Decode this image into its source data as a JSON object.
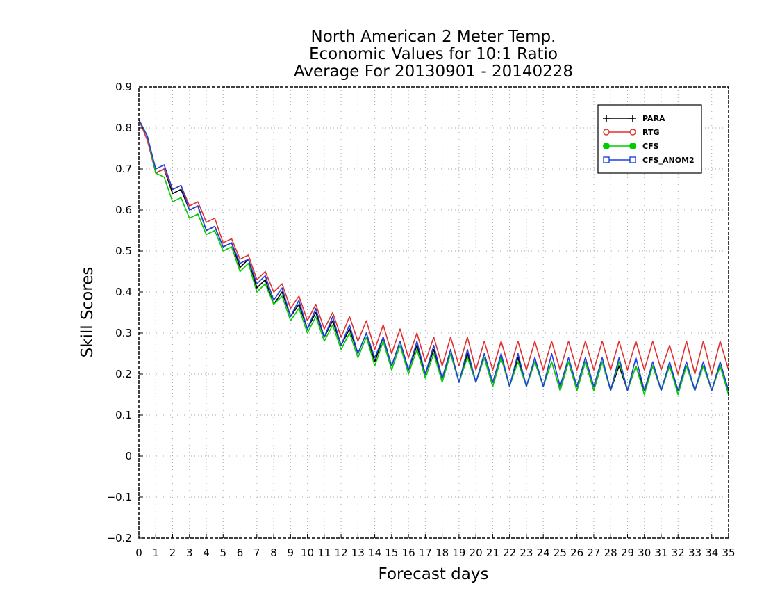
{
  "chart_data": {
    "type": "line",
    "title_lines": [
      "North American 2 Meter Temp.",
      "Economic Values for 10:1 Ratio",
      "Average For 20130901 - 20140228"
    ],
    "xlabel": "Forecast days",
    "ylabel": "Skill Scores",
    "xlim": [
      0,
      35
    ],
    "ylim": [
      -0.2,
      0.9
    ],
    "x_ticks": [
      0,
      1,
      2,
      3,
      4,
      5,
      6,
      7,
      8,
      9,
      10,
      11,
      12,
      13,
      14,
      15,
      16,
      17,
      18,
      19,
      20,
      21,
      22,
      23,
      24,
      25,
      26,
      27,
      28,
      29,
      30,
      31,
      32,
      33,
      34,
      35
    ],
    "y_ticks": [
      0.9,
      0.8,
      0.7,
      0.6,
      0.5,
      0.4,
      0.3,
      0.2,
      0.1,
      0,
      -0.1,
      -0.2
    ],
    "y_tick_labels": [
      "0.9",
      "0.8",
      "0.7",
      "0.6",
      "0.5",
      "0.4",
      "0.3",
      "0.2",
      "0.1",
      "0",
      "−0.1",
      "−0.2"
    ],
    "grid": true,
    "legend_position": "top-right",
    "series": [
      {
        "name": "PARA",
        "color": "#000000",
        "marker": "plus",
        "values": [
          0.82,
          0.78,
          0.69,
          0.7,
          0.64,
          0.65,
          0.6,
          0.61,
          0.55,
          0.56,
          0.51,
          0.52,
          0.46,
          0.48,
          0.41,
          0.43,
          0.37,
          0.4,
          0.34,
          0.37,
          0.31,
          0.35,
          0.29,
          0.33,
          0.27,
          0.31,
          0.25,
          0.3,
          0.23,
          0.29,
          0.22,
          0.28,
          0.21,
          0.27,
          0.2,
          0.26,
          0.19,
          0.25,
          0.18,
          0.25,
          0.18,
          0.24,
          0.17,
          0.24,
          0.17,
          0.24,
          0.17,
          0.23,
          0.17,
          0.23,
          0.16,
          0.23,
          0.16,
          0.23,
          0.16,
          0.23,
          0.16,
          0.22,
          0.16,
          0.22,
          0.16,
          0.22,
          0.16,
          0.22,
          0.16,
          0.22,
          0.16,
          0.22,
          0.16,
          0.22,
          0.15
        ]
      },
      {
        "name": "RTG",
        "color": "#e03030",
        "marker": "circle",
        "values": [
          0.82,
          0.77,
          0.69,
          0.7,
          0.65,
          0.66,
          0.61,
          0.62,
          0.57,
          0.58,
          0.52,
          0.53,
          0.48,
          0.49,
          0.43,
          0.45,
          0.4,
          0.42,
          0.36,
          0.39,
          0.33,
          0.37,
          0.31,
          0.35,
          0.29,
          0.34,
          0.28,
          0.33,
          0.26,
          0.32,
          0.25,
          0.31,
          0.24,
          0.3,
          0.23,
          0.29,
          0.22,
          0.29,
          0.22,
          0.29,
          0.21,
          0.28,
          0.21,
          0.28,
          0.21,
          0.28,
          0.21,
          0.28,
          0.21,
          0.28,
          0.21,
          0.28,
          0.21,
          0.28,
          0.21,
          0.28,
          0.21,
          0.28,
          0.21,
          0.28,
          0.21,
          0.28,
          0.21,
          0.27,
          0.2,
          0.28,
          0.2,
          0.28,
          0.2,
          0.28,
          0.21
        ]
      },
      {
        "name": "CFS",
        "color": "#00cc00",
        "marker": "filled-circle",
        "values": [
          0.82,
          0.78,
          0.69,
          0.68,
          0.62,
          0.63,
          0.58,
          0.59,
          0.54,
          0.55,
          0.5,
          0.51,
          0.45,
          0.47,
          0.4,
          0.42,
          0.37,
          0.39,
          0.33,
          0.36,
          0.3,
          0.34,
          0.28,
          0.32,
          0.26,
          0.3,
          0.24,
          0.29,
          0.22,
          0.28,
          0.21,
          0.27,
          0.2,
          0.26,
          0.19,
          0.25,
          0.18,
          0.25,
          0.18,
          0.24,
          0.18,
          0.24,
          0.17,
          0.24,
          0.17,
          0.23,
          0.17,
          0.23,
          0.17,
          0.23,
          0.16,
          0.23,
          0.16,
          0.23,
          0.16,
          0.23,
          0.16,
          0.23,
          0.16,
          0.22,
          0.15,
          0.22,
          0.16,
          0.22,
          0.15,
          0.22,
          0.16,
          0.22,
          0.16,
          0.22,
          0.15
        ]
      },
      {
        "name": "CFS_ANOM2",
        "color": "#2040e0",
        "marker": "square",
        "values": [
          0.82,
          0.78,
          0.7,
          0.71,
          0.65,
          0.66,
          0.6,
          0.61,
          0.55,
          0.56,
          0.51,
          0.52,
          0.47,
          0.48,
          0.42,
          0.44,
          0.38,
          0.41,
          0.34,
          0.38,
          0.31,
          0.36,
          0.29,
          0.34,
          0.27,
          0.32,
          0.25,
          0.3,
          0.24,
          0.29,
          0.22,
          0.28,
          0.21,
          0.28,
          0.2,
          0.27,
          0.19,
          0.26,
          0.18,
          0.26,
          0.18,
          0.25,
          0.18,
          0.25,
          0.17,
          0.25,
          0.17,
          0.24,
          0.17,
          0.25,
          0.17,
          0.24,
          0.17,
          0.24,
          0.17,
          0.24,
          0.16,
          0.24,
          0.16,
          0.24,
          0.16,
          0.23,
          0.16,
          0.23,
          0.16,
          0.23,
          0.16,
          0.23,
          0.16,
          0.23,
          0.16
        ]
      }
    ]
  }
}
